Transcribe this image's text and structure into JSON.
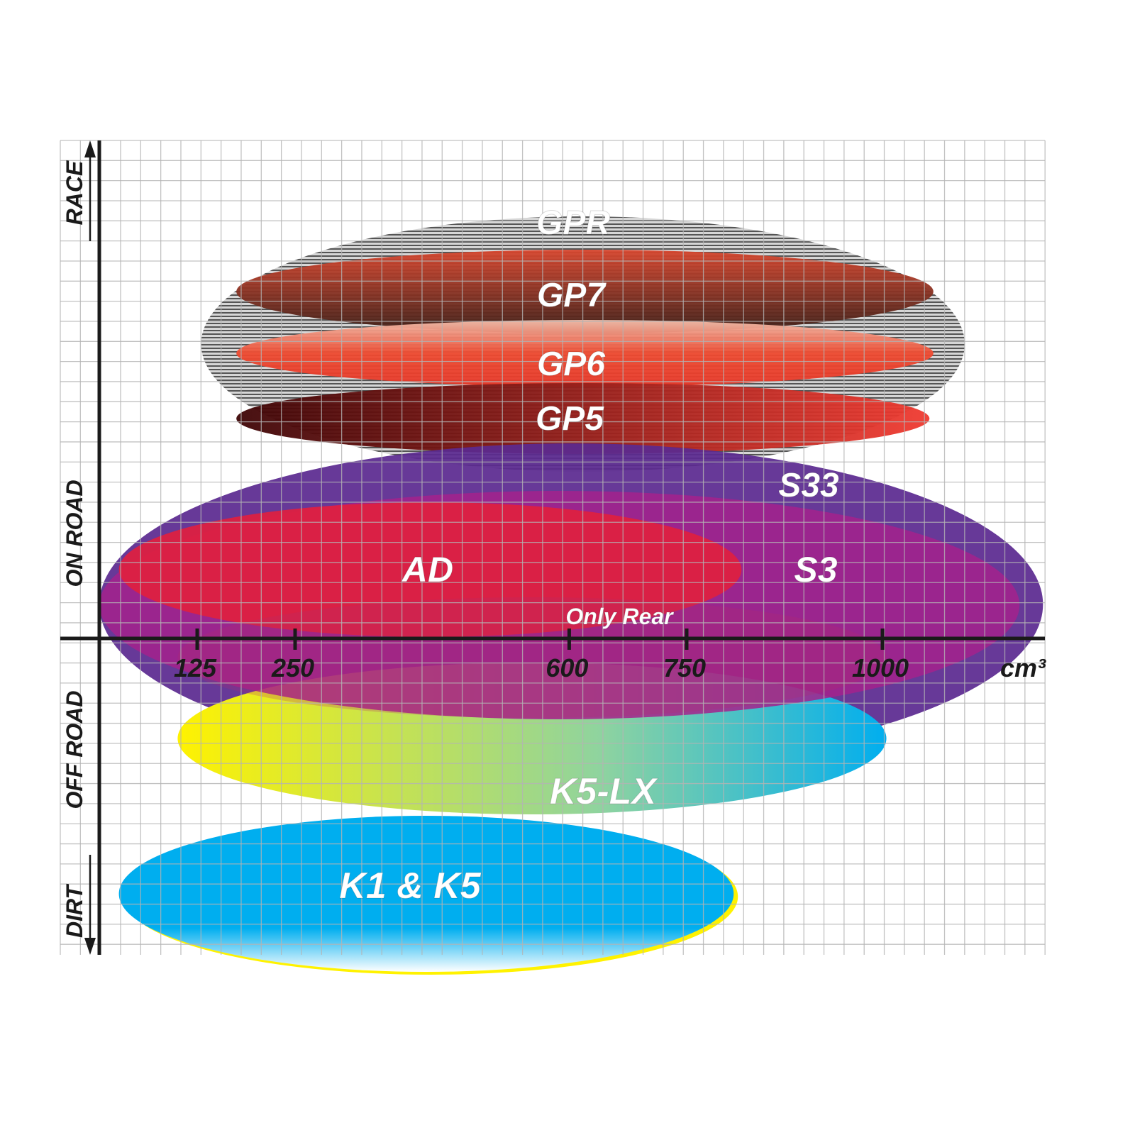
{
  "chart_data": {
    "type": "range-ellipse",
    "xlabel": "cm³",
    "x_ticks": [
      125,
      250,
      600,
      750,
      1000
    ],
    "x_tick_labels": [
      "125",
      "250",
      "600",
      "750",
      "1000"
    ],
    "y_categories": [
      "RACE",
      "ON ROAD",
      "OFF ROAD",
      "DIRT"
    ],
    "grid": true,
    "series": [
      {
        "name": "GPR",
        "x_range": [
          130,
          1105
        ],
        "color": "#9a9a9a",
        "fill": "striped"
      },
      {
        "name": "GP7",
        "x_range": [
          175,
          1065
        ],
        "color": "#6b3226"
      },
      {
        "name": "GP6",
        "x_range": [
          175,
          1065
        ],
        "color": "#e8422e"
      },
      {
        "name": "GP5",
        "x_range": [
          175,
          1060
        ],
        "color": "#5a0a0a"
      },
      {
        "name": "S33",
        "x_range": [
          0,
          1205
        ],
        "color": "#5b2a90"
      },
      {
        "name": "S3",
        "x_range": [
          0,
          1175
        ],
        "color": "#a4228c"
      },
      {
        "name": "AD",
        "x_range": [
          25,
          820
        ],
        "color": "#e0203f"
      },
      {
        "name": "Only Rear",
        "x_range": [
          100,
          1005
        ],
        "color": "#b42a6a"
      },
      {
        "name": "K5-LX",
        "x_range": [
          100,
          1005
        ],
        "color": "#f5ee1a"
      },
      {
        "name": "K1 & K5",
        "x_range": [
          25,
          810
        ],
        "color": "#00aeef"
      }
    ]
  }
}
